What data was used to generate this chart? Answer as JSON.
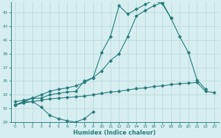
{
  "x_values": [
    0,
    1,
    2,
    3,
    4,
    5,
    6,
    7,
    8,
    9,
    10,
    11,
    12,
    13,
    14,
    15,
    16,
    17,
    18,
    19,
    20,
    21,
    22,
    23
  ],
  "line1_x": [
    0,
    1,
    2,
    3,
    4,
    5,
    6,
    7,
    8,
    9
  ],
  "line1_y": [
    31.5,
    32.0,
    32.0,
    31.2,
    30.0,
    29.5,
    29.2,
    29.0,
    29.5,
    30.5
  ],
  "line2_x": [
    0,
    1,
    2,
    3,
    4,
    5,
    6,
    7,
    8,
    9,
    10,
    11,
    12,
    13,
    14,
    15,
    16,
    17,
    18
  ],
  "line2_y": [
    32.0,
    32.2,
    32.5,
    32.5,
    33.0,
    33.2,
    33.4,
    33.5,
    35.0,
    35.5,
    39.2,
    41.5,
    46.0,
    44.8,
    45.5,
    46.2,
    46.8,
    46.3,
    44.2
  ],
  "line3_x": [
    0,
    1,
    2,
    3,
    4,
    5,
    6,
    7,
    8,
    9,
    10,
    11,
    12,
    13,
    14,
    15,
    16,
    17,
    18,
    19,
    20,
    21,
    22
  ],
  "line3_y": [
    31.5,
    32.0,
    32.5,
    33.0,
    33.5,
    33.8,
    34.0,
    34.3,
    34.8,
    35.5,
    36.5,
    38.0,
    39.0,
    41.5,
    44.5,
    45.3,
    46.0,
    46.5,
    44.2,
    41.5,
    39.2,
    35.2,
    33.8
  ],
  "line4_x": [
    0,
    1,
    2,
    3,
    4,
    5,
    6,
    7,
    8,
    9,
    10,
    11,
    12,
    13,
    14,
    15,
    16,
    17,
    18,
    19,
    20,
    21,
    22,
    23
  ],
  "line4_y": [
    31.5,
    31.8,
    32.0,
    32.2,
    32.4,
    32.5,
    32.6,
    32.7,
    32.8,
    33.0,
    33.2,
    33.4,
    33.5,
    33.7,
    33.9,
    34.0,
    34.2,
    34.3,
    34.5,
    34.6,
    34.7,
    34.8,
    33.5,
    33.3
  ],
  "line_color": "#267b7b",
  "bg_color": "#d6eef0",
  "grid_color": "#b8d4d8",
  "ylim": [
    29,
    46
  ],
  "xlim": [
    -0.5,
    23.5
  ],
  "yticks": [
    29,
    31,
    33,
    35,
    37,
    39,
    41,
    43,
    45
  ],
  "xticks": [
    0,
    1,
    2,
    3,
    4,
    5,
    6,
    7,
    8,
    9,
    10,
    11,
    12,
    13,
    14,
    15,
    16,
    17,
    18,
    19,
    20,
    21,
    22,
    23
  ],
  "xlabel": "Humidex (Indice chaleur)",
  "markersize": 2.5,
  "linewidth": 0.85
}
